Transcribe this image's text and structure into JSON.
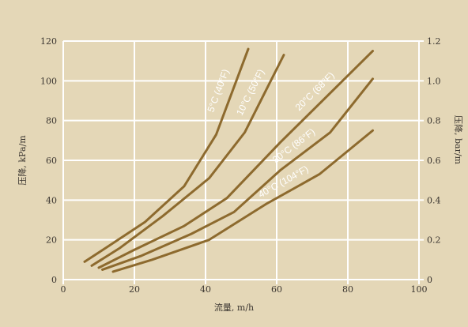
{
  "colors": {
    "background": "#e4d7b7",
    "grid": "#ffffff",
    "curve": "#8d6a2e",
    "text": "#3a3530"
  },
  "chart_data": {
    "type": "line",
    "xlabel": "流量, m/h",
    "ylabel": "压降, kPa/m",
    "ylabel_right": "压降, bar/m",
    "xlim": [
      0,
      100
    ],
    "ylim": [
      0,
      120
    ],
    "y2lim": [
      0,
      1.2
    ],
    "x_ticks": [
      "0",
      "20",
      "40",
      "60",
      "80",
      "100"
    ],
    "y_ticks": [
      "0",
      "20",
      "40",
      "60",
      "80",
      "100",
      "120"
    ],
    "y2_ticks": [
      "0",
      "0.2",
      "0.4",
      "0.6",
      "0.8",
      "1.0",
      "1.2"
    ],
    "grid": true,
    "series": [
      {
        "name": "5°C (40°F)",
        "points": [
          [
            6,
            9
          ],
          [
            12,
            16
          ],
          [
            23,
            29
          ],
          [
            34,
            47
          ],
          [
            43,
            73
          ],
          [
            52,
            116
          ]
        ]
      },
      {
        "name": "10°C (50°F)",
        "points": [
          [
            8,
            7
          ],
          [
            16,
            16
          ],
          [
            28,
            32
          ],
          [
            41,
            51
          ],
          [
            51,
            74
          ],
          [
            62,
            113
          ]
        ]
      },
      {
        "name": "20°C (68°F)",
        "points": [
          [
            10,
            6
          ],
          [
            20,
            15
          ],
          [
            34,
            27
          ],
          [
            46,
            41
          ],
          [
            61,
            69
          ],
          [
            87,
            115
          ]
        ]
      },
      {
        "name": "30°C (86°F)",
        "points": [
          [
            11,
            5
          ],
          [
            22,
            12
          ],
          [
            36,
            23
          ],
          [
            48,
            34
          ],
          [
            61,
            55
          ],
          [
            75,
            74
          ],
          [
            87,
            101
          ]
        ]
      },
      {
        "name": "40°C (104°F)",
        "points": [
          [
            14,
            4
          ],
          [
            25,
            10
          ],
          [
            41,
            20
          ],
          [
            57,
            38
          ],
          [
            72,
            53
          ],
          [
            87,
            75
          ]
        ]
      }
    ]
  }
}
